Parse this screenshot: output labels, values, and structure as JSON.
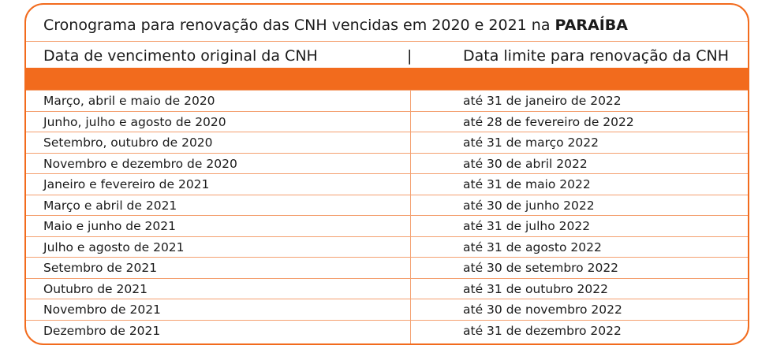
{
  "title": {
    "prefix": "Cronograma para renovação das CNH vencidas em 2020 e 2021 na ",
    "state": "PARAÍBA"
  },
  "header": {
    "col1": "Data de vencimento original da CNH",
    "separator": "|",
    "col2": "Data limite para renovação da CNH"
  },
  "colors": {
    "accent": "#f26b1d"
  },
  "rows": [
    {
      "original": "Março, abril e maio de 2020",
      "limit": "até 31 de janeiro de 2022"
    },
    {
      "original": "Junho, julho e agosto de 2020",
      "limit": "até 28 de fevereiro de 2022"
    },
    {
      "original": "Setembro, outubro de 2020",
      "limit": "até 31 de março 2022"
    },
    {
      "original": "Novembro e dezembro de 2020",
      "limit": "até 30 de abril 2022"
    },
    {
      "original": "Janeiro e fevereiro de 2021",
      "limit": "até 31 de maio 2022"
    },
    {
      "original": "Março e abril de 2021",
      "limit": "até 30 de junho 2022"
    },
    {
      "original": "Maio e junho de 2021",
      "limit": "até 31 de julho 2022"
    },
    {
      "original": "Julho e agosto de 2021",
      "limit": "até 31 de agosto 2022"
    },
    {
      "original": "Setembro de 2021",
      "limit": "até 30 de setembro 2022"
    },
    {
      "original": "Outubro de 2021",
      "limit": "até 31 de outubro 2022"
    },
    {
      "original": "Novembro de 2021",
      "limit": "até 30 de novembro 2022"
    },
    {
      "original": "Dezembro de 2021",
      "limit": "até 31 de dezembro 2022"
    }
  ]
}
